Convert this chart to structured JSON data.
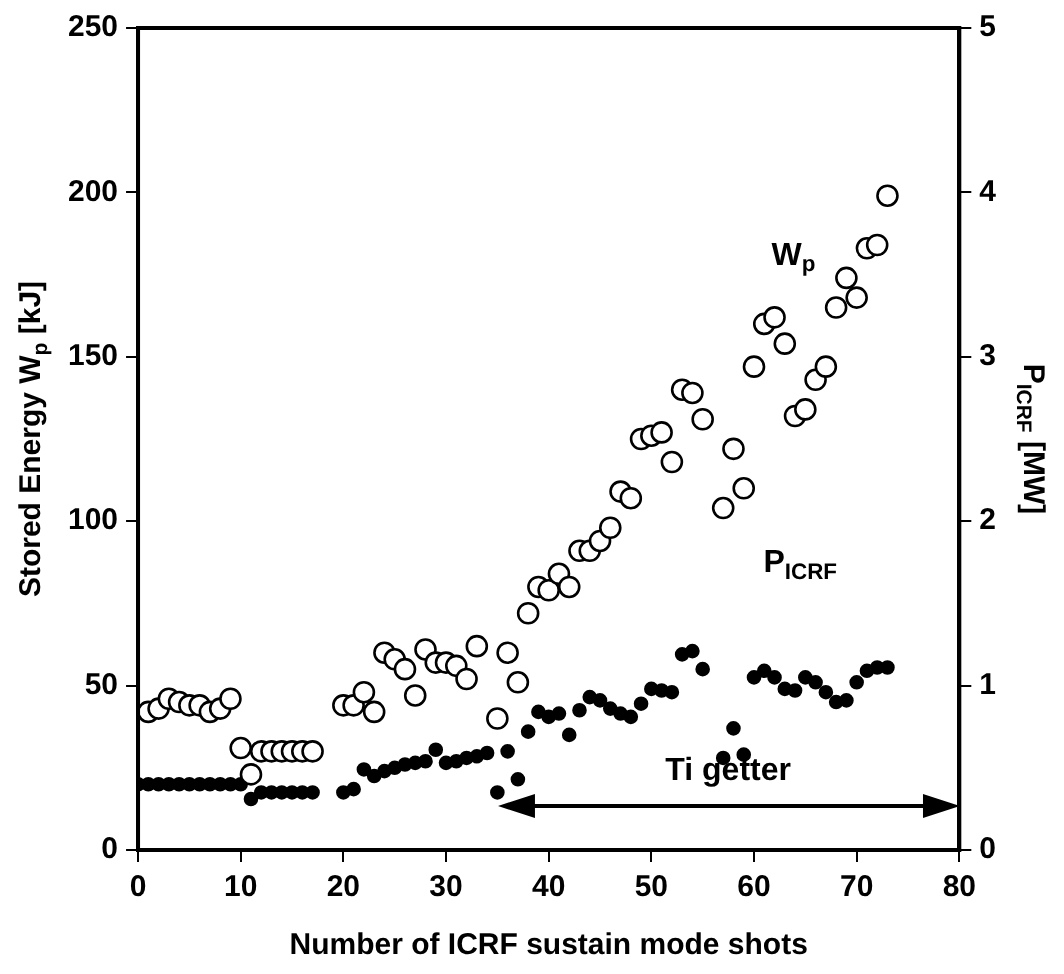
{
  "chart_data": {
    "type": "scatter",
    "xlabel": "Number of ICRF sustain mode shots",
    "ylabel": "Stored Energy W$_{p}$ [kJ]",
    "y2label": "P$_{ICRF}$ [MW]",
    "xlim": [
      0,
      80
    ],
    "xticks": [
      0,
      10,
      20,
      30,
      40,
      50,
      60,
      70,
      80
    ],
    "ylim": [
      0,
      250
    ],
    "yticks": [
      0,
      50,
      100,
      150,
      200,
      250
    ],
    "y2lim": [
      0,
      5
    ],
    "y2ticks": [
      0,
      1,
      2,
      3,
      4,
      5
    ],
    "grid": false,
    "legend": false,
    "marker": "circle",
    "annotations": [
      "Ti getter"
    ],
    "series": [
      {
        "name": "W$_{p}$",
        "color": "#000000",
        "axis": "y",
        "x": [
          1,
          2,
          3,
          4,
          5,
          6,
          7,
          8,
          9,
          10,
          11,
          12,
          13,
          14,
          15,
          16,
          17,
          20,
          21,
          22,
          23,
          24,
          25,
          26,
          27,
          28,
          29,
          30,
          31,
          32,
          33,
          35,
          36,
          37,
          38,
          39,
          40,
          41,
          42,
          43,
          44,
          45,
          46,
          47,
          48,
          49,
          50,
          51,
          52,
          53,
          54,
          55,
          57,
          58,
          59,
          60,
          61,
          62,
          63,
          64,
          65,
          66,
          67,
          68,
          69,
          70,
          71,
          72,
          73
        ],
        "values": [
          42,
          43,
          46,
          45,
          44,
          44,
          42,
          43,
          46,
          31,
          23,
          30,
          30,
          30,
          30,
          30,
          30,
          44,
          44,
          48,
          42,
          60,
          58,
          55,
          47,
          61,
          57,
          57,
          56,
          52,
          62,
          40,
          60,
          51,
          72,
          80,
          79,
          84,
          80,
          91,
          91,
          94,
          98,
          109,
          107,
          125,
          126,
          127,
          118,
          140,
          139,
          131,
          104,
          122,
          110,
          147,
          160,
          162,
          154,
          132,
          134,
          143,
          147,
          165,
          174,
          168,
          183,
          184,
          199
        ]
      },
      {
        "name": "P$_{ICRF}$",
        "color": "#000000",
        "axis": "y2",
        "x": [
          0,
          1,
          2,
          3,
          4,
          5,
          6,
          7,
          8,
          9,
          10,
          11,
          12,
          13,
          14,
          15,
          16,
          17,
          20,
          21,
          22,
          23,
          24,
          25,
          26,
          27,
          28,
          29,
          30,
          31,
          32,
          33,
          34,
          35,
          36,
          37,
          38,
          39,
          40,
          41,
          42,
          43,
          44,
          45,
          46,
          47,
          48,
          49,
          50,
          51,
          52,
          53,
          54,
          55,
          57,
          58,
          59,
          60,
          61,
          62,
          63,
          64,
          65,
          66,
          67,
          68,
          69,
          70,
          71,
          72,
          73
        ],
        "values": [
          0.4,
          0.4,
          0.4,
          0.4,
          0.4,
          0.4,
          0.4,
          0.4,
          0.4,
          0.4,
          0.4,
          0.31,
          0.35,
          0.35,
          0.35,
          0.35,
          0.35,
          0.35,
          0.35,
          0.37,
          0.49,
          0.45,
          0.48,
          0.5,
          0.52,
          0.53,
          0.54,
          0.61,
          0.53,
          0.54,
          0.56,
          0.57,
          0.59,
          0.35,
          0.6,
          0.43,
          0.72,
          0.84,
          0.81,
          0.83,
          0.7,
          0.85,
          0.93,
          0.91,
          0.86,
          0.83,
          0.81,
          0.89,
          0.98,
          0.97,
          0.96,
          1.19,
          1.21,
          1.1,
          0.56,
          0.74,
          0.58,
          1.05,
          1.09,
          1.05,
          0.98,
          0.97,
          1.05,
          1.02,
          0.96,
          0.9,
          0.91,
          1.02,
          1.09,
          1.11,
          1.11
        ]
      }
    ]
  }
}
